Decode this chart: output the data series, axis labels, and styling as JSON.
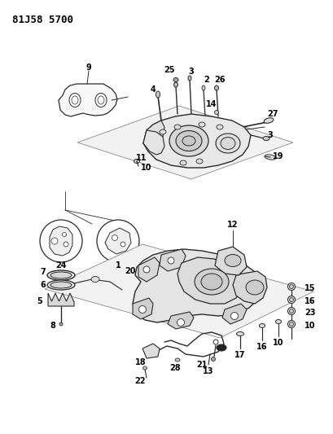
{
  "title": "81J58 5700",
  "bg_color": "#ffffff",
  "line_color": "#2a2a2a",
  "figsize": [
    4.09,
    5.33
  ],
  "dpi": 100
}
